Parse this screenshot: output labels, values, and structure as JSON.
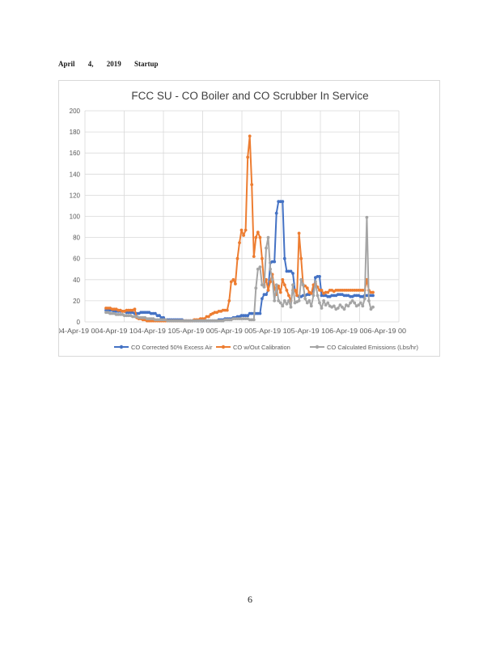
{
  "heading": {
    "month": "April",
    "day": "4,",
    "year": "2019",
    "label": "Startup"
  },
  "page_number": "6",
  "chart_data": {
    "type": "line",
    "title": "FCC SU - CO Boiler and CO Scrubber In Service",
    "xlabel": "",
    "ylabel": "",
    "ylim": [
      0,
      200
    ],
    "yticks": [
      "0",
      "20",
      "40",
      "60",
      "80",
      "100",
      "120",
      "140",
      "160",
      "180",
      "200"
    ],
    "xtick_labels": [
      "04-Apr-19 00",
      "04-Apr-19 12",
      "04-Apr-19 18",
      "05-Apr-19 00",
      "05-Apr-19 06",
      "05-Apr-19 12",
      "05-Apr-19 18",
      "06-Apr-19 00",
      "06-Apr-19 06"
    ],
    "xtick_label_text": "04-Apr-19 004-Apr-19 104-Apr-19 105-Apr-19 005-Apr-19 005-Apr-19 105-Apr-19 106-Apr-19 006-Apr-19 00",
    "grid": true,
    "legend_position": "bottom",
    "colors": {
      "series1": "#4472c4",
      "series2": "#ed7d31",
      "series3": "#a5a5a5",
      "grid": "#d9d9d9",
      "axis_text": "#595959"
    },
    "series": [
      {
        "name": "CO Corrected 50% Excess Air",
        "color": "#4472c4",
        "values": [
          11,
          11,
          11,
          11,
          10,
          10,
          10,
          10,
          10,
          10,
          9,
          9,
          9,
          9,
          8,
          8,
          8,
          9,
          9,
          9,
          9,
          9,
          8,
          8,
          8,
          6,
          6,
          4,
          4,
          2,
          2,
          2,
          2,
          2,
          2,
          2,
          2,
          2,
          1,
          1,
          1,
          1,
          1,
          1,
          1,
          1,
          1,
          1,
          1,
          1,
          1,
          1,
          1,
          1,
          1,
          2,
          2,
          2,
          3,
          3,
          3,
          3,
          4,
          4,
          5,
          5,
          6,
          6,
          6,
          6,
          8,
          8,
          8,
          8,
          8,
          8,
          22,
          26,
          26,
          30,
          56,
          57,
          57,
          103,
          114,
          114,
          114,
          60,
          48,
          48,
          48,
          46,
          30,
          25,
          24,
          24,
          25,
          25,
          26,
          26,
          27,
          30,
          42,
          43,
          43,
          25,
          25,
          25,
          24,
          24,
          25,
          25,
          25,
          26,
          26,
          26,
          25,
          25,
          25,
          24,
          24,
          25,
          25,
          25,
          24,
          24,
          25,
          25,
          25,
          25,
          25
        ]
      },
      {
        "name": "CO w/Out Calibration",
        "color": "#ed7d31",
        "values": [
          13,
          13,
          13,
          12,
          12,
          12,
          11,
          11,
          10,
          10,
          11,
          11,
          11,
          11,
          12,
          4,
          3,
          3,
          2,
          2,
          1,
          1,
          1,
          1,
          1,
          1,
          1,
          1,
          1,
          1,
          1,
          1,
          1,
          1,
          1,
          1,
          1,
          1,
          1,
          1,
          1,
          1,
          1,
          2,
          2,
          2,
          3,
          3,
          3,
          5,
          5,
          7,
          8,
          9,
          9,
          10,
          10,
          11,
          11,
          11,
          20,
          38,
          40,
          36,
          60,
          75,
          87,
          82,
          87,
          156,
          176,
          130,
          62,
          80,
          85,
          80,
          60,
          35,
          40,
          30,
          38,
          45,
          32,
          26,
          34,
          28,
          40,
          35,
          30,
          25,
          20,
          30,
          30,
          25,
          84,
          60,
          35,
          34,
          32,
          28,
          27,
          35,
          36,
          33,
          30,
          30,
          27,
          28,
          28,
          30,
          30,
          29,
          30,
          30,
          30,
          30,
          30,
          30,
          30,
          30,
          30,
          30,
          30,
          30,
          30,
          30,
          30,
          40,
          30,
          28,
          28
        ]
      },
      {
        "name": "CO Calculated Emissions (Lbs/hr)",
        "color": "#a5a5a5",
        "values": [
          9,
          9,
          8,
          8,
          8,
          7,
          7,
          7,
          7,
          6,
          6,
          6,
          6,
          5,
          5,
          5,
          4,
          4,
          4,
          4,
          3,
          3,
          3,
          3,
          2,
          2,
          2,
          2,
          2,
          2,
          1,
          1,
          1,
          1,
          1,
          1,
          1,
          1,
          1,
          1,
          1,
          1,
          1,
          1,
          1,
          1,
          1,
          1,
          1,
          1,
          1,
          1,
          1,
          1,
          1,
          1,
          1,
          1,
          2,
          2,
          2,
          2,
          3,
          3,
          3,
          3,
          3,
          3,
          3,
          3,
          2,
          2,
          2,
          32,
          50,
          52,
          35,
          33,
          70,
          80,
          50,
          40,
          20,
          35,
          20,
          18,
          15,
          20,
          17,
          20,
          14,
          35,
          18,
          19,
          20,
          40,
          35,
          22,
          18,
          20,
          15,
          25,
          38,
          25,
          18,
          13,
          20,
          16,
          18,
          15,
          14,
          15,
          12,
          13,
          16,
          14,
          12,
          16,
          15,
          18,
          20,
          18,
          15,
          16,
          18,
          15,
          22,
          99,
          20,
          12,
          14
        ]
      }
    ]
  }
}
